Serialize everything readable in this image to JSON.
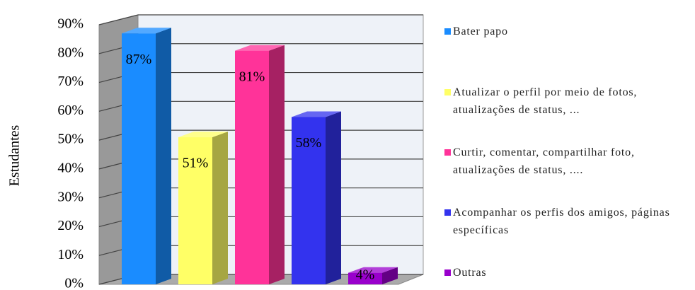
{
  "chart_data": {
    "type": "bar3d",
    "y_label": "Estudantes",
    "categories": [
      "Bater papo",
      "Atualizar o perfil por meio de fotos, atualizações de status, ...",
      "Curtir, comentar, compartilhar foto, atualizações de status, ....",
      "Acompanhar os perfis dos amigos, páginas específicas",
      "Outras"
    ],
    "values": [
      87,
      51,
      81,
      58,
      4
    ],
    "value_labels": [
      "87%",
      "51%",
      "81%",
      "58%",
      "4%"
    ],
    "colors": [
      "#1a8cff",
      "#ffff66",
      "#ff3399",
      "#3333ee",
      "#9900cc"
    ],
    "ylim": [
      0,
      90
    ],
    "yticks": [
      {
        "value": 0,
        "label": "0%"
      },
      {
        "value": 10,
        "label": "10%"
      },
      {
        "value": 20,
        "label": "20%"
      },
      {
        "value": 30,
        "label": "30%"
      },
      {
        "value": 40,
        "label": "40%"
      },
      {
        "value": 50,
        "label": "50%"
      },
      {
        "value": 60,
        "label": "60%"
      },
      {
        "value": 70,
        "label": "70%"
      },
      {
        "value": 80,
        "label": "80%"
      },
      {
        "value": 90,
        "label": "90%"
      }
    ],
    "grid": true,
    "legend": "right"
  }
}
